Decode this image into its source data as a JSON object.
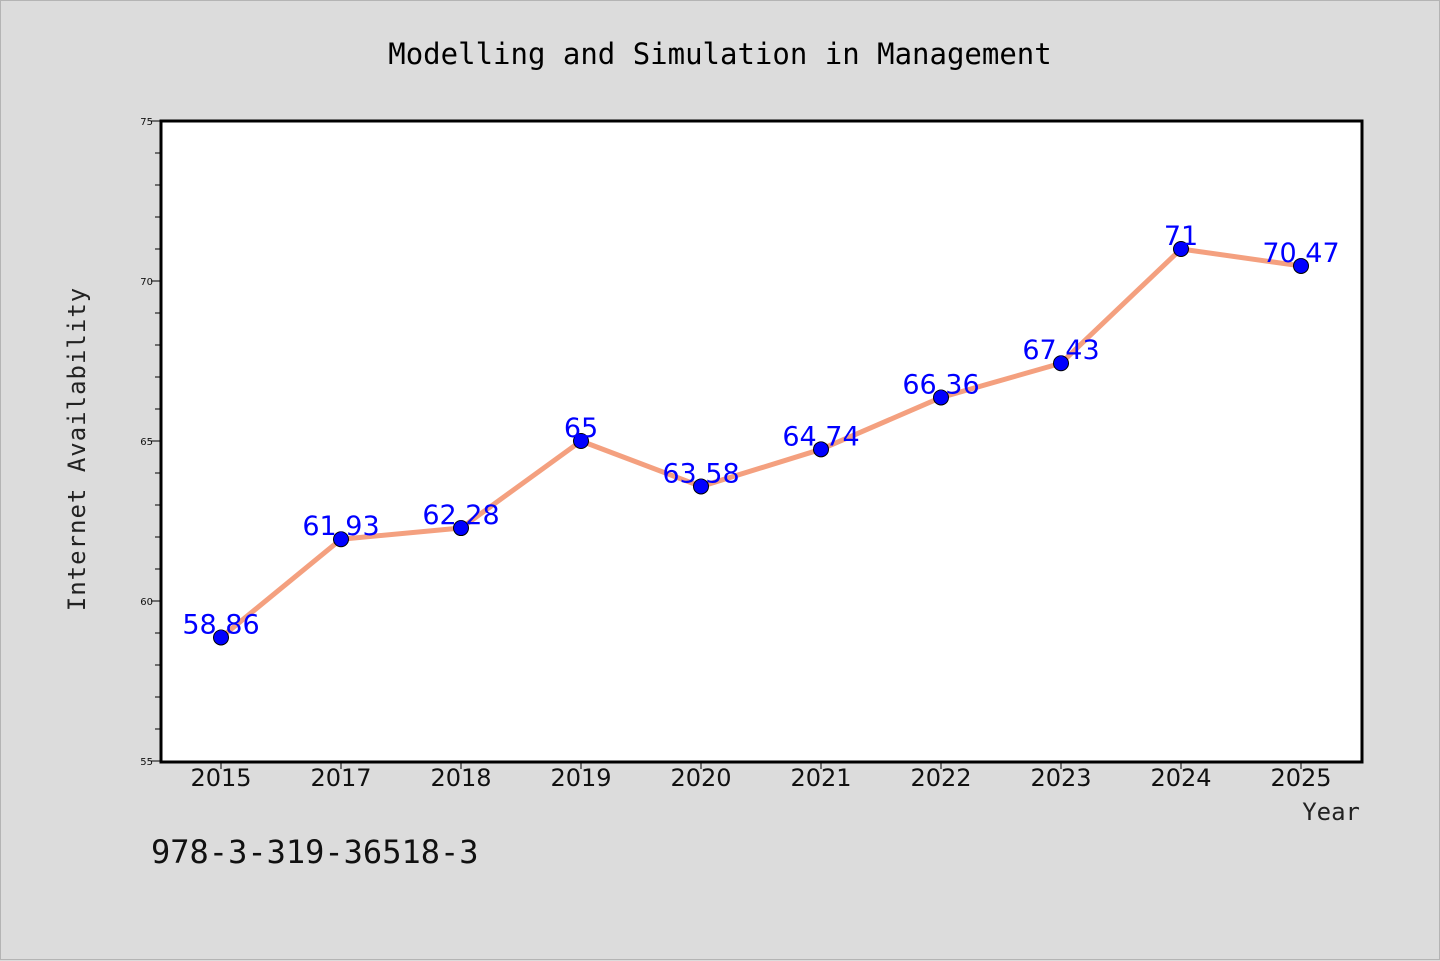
{
  "chart_data": {
    "type": "line",
    "title": "Modelling and Simulation in Management",
    "xlabel": "Year",
    "ylabel": "Internet Availability",
    "categories": [
      "2015",
      "2017",
      "2018",
      "2019",
      "2020",
      "2021",
      "2022",
      "2023",
      "2024",
      "2025"
    ],
    "series": [
      {
        "values": [
          58.86,
          61.93,
          62.28,
          65,
          63.58,
          64.74,
          66.36,
          67.43,
          71,
          70.47
        ],
        "labels": [
          "58.86",
          "61.93",
          "62.28",
          "65",
          "63.58",
          "64.74",
          "66.36",
          "67.43",
          "71",
          "70.47"
        ],
        "line_color": "#f4a07f",
        "marker_color": "#0000ff"
      }
    ],
    "ylim": [
      55,
      75
    ],
    "yticks": [
      "55",
      "60",
      "65",
      "70",
      "75"
    ],
    "grid": false,
    "legend": "none"
  },
  "footer_text": "978-3-319-36518-3"
}
